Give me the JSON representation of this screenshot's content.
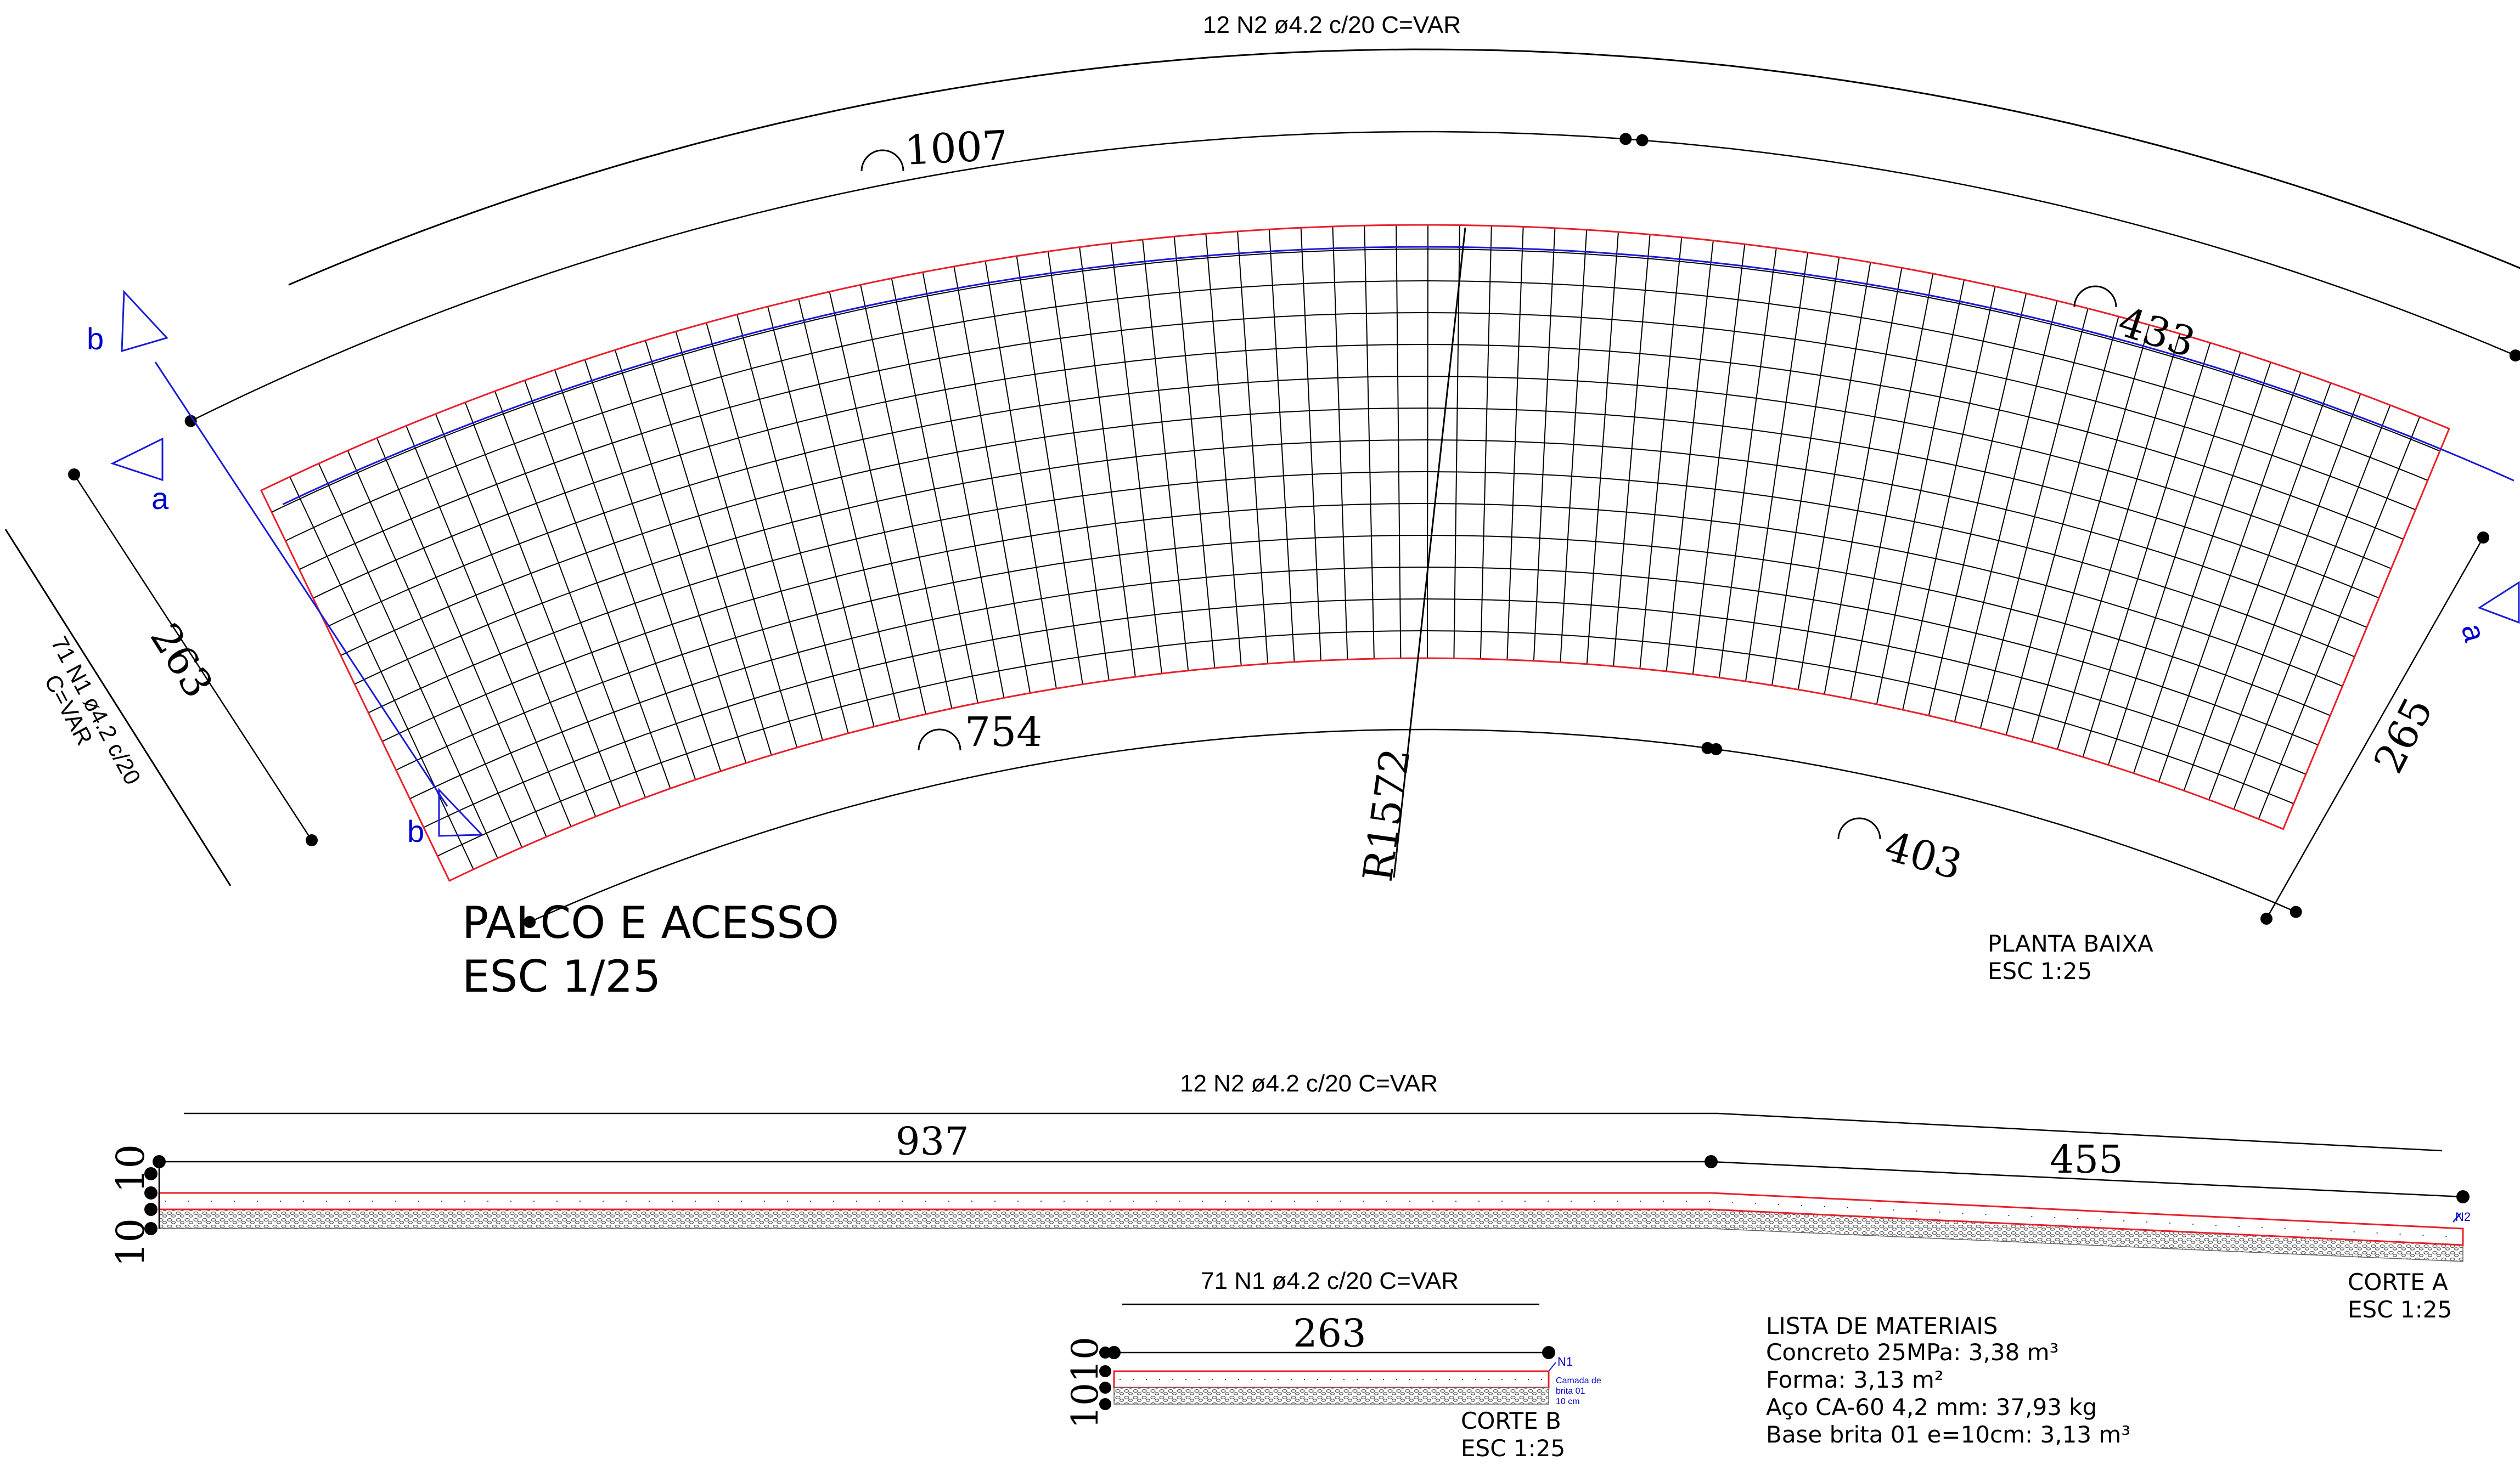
{
  "planta": {
    "top_bar_label": "12 N2 ø4.2 c/20  C=VAR",
    "arc_top": "1007",
    "arc_top_right": "433",
    "arc_bottom": "754",
    "arc_bottom_right": "403",
    "side_left": "263",
    "side_right": "265",
    "side_bar_label_1": "71 N1 ø4.2 c/20",
    "side_bar_label_2": "C=VAR",
    "radius": "R1572",
    "section_a": "a",
    "section_b": "b",
    "title_1": "PALCO E ACESSO",
    "title_2": "ESC 1/25",
    "view_label_1": "PLANTA BAIXA",
    "view_label_2": "ESC 1:25"
  },
  "corte_a": {
    "bar_label": "12 N2 ø4.2 c/20  C=VAR",
    "dim_1": "937",
    "dim_2": "455",
    "thick_1": "10",
    "thick_2": "10",
    "n2": "N2",
    "label_1": "CORTE A",
    "label_2": "ESC 1:25"
  },
  "corte_b": {
    "bar_label": "71 N1 ø4.2 c/20 C=VAR",
    "dim": "263",
    "thick": "1010",
    "n1": "N1",
    "note_1": "Camada de",
    "note_2": "brita 01",
    "note_3": "10 cm",
    "label_1": "CORTE B",
    "label_2": "ESC 1:25"
  },
  "materiais": {
    "title": "LISTA DE MATERIAIS",
    "items": [
      "Concreto 25MPa: 3,38 m³",
      "Forma: 3,13 m²",
      "Aço CA-60 4,2 mm: 37,93 kg",
      "Base brita 01 e=10cm: 3,13 m³"
    ]
  },
  "colors": {
    "outline": "#e8202a",
    "section_line": "#1a1ad8",
    "rebar": "#000000"
  }
}
